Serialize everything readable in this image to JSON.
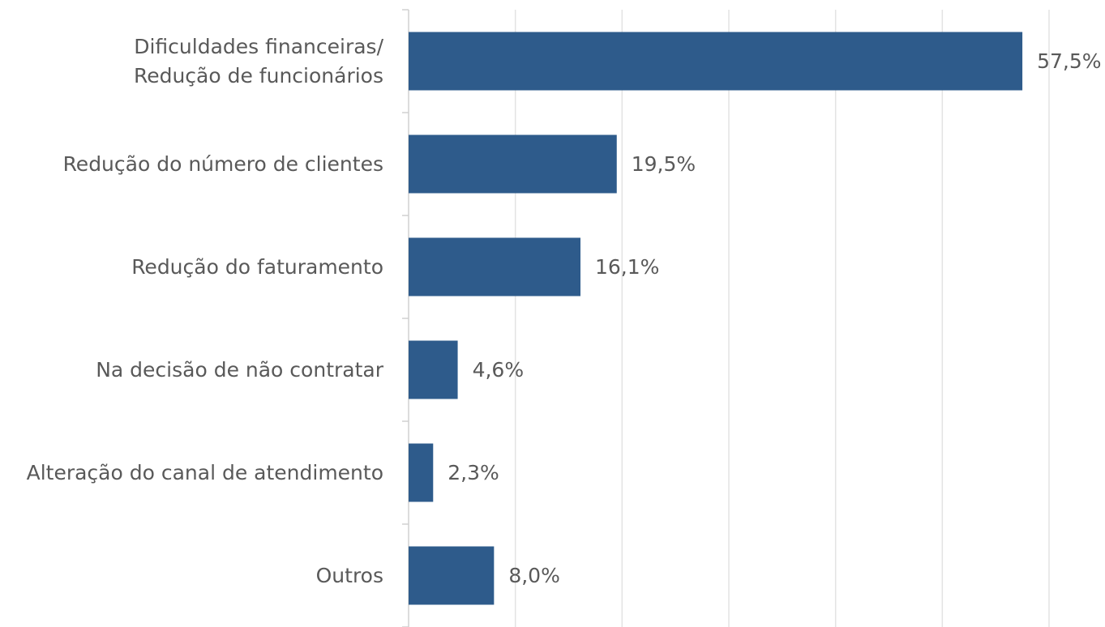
{
  "chart_data": {
    "type": "barh",
    "categories": [
      "Dificuldades financeiras/\nRedução de funcionários",
      "Redução do número de clientes",
      "Redução do faturamento",
      "Na decisão de não contratar",
      "Alteração do canal de atendimento",
      "Outros"
    ],
    "values": [
      57.5,
      19.5,
      16.1,
      4.6,
      2.3,
      8.0
    ],
    "value_labels": [
      "57,5%",
      "19,5%",
      "16,1%",
      "4,6%",
      "2,3%",
      "8,0%"
    ],
    "color": "#2e5b8b",
    "xlim": [
      0,
      60
    ],
    "xticks": [
      0,
      10,
      20,
      30,
      40,
      50,
      60
    ],
    "grid": true
  }
}
